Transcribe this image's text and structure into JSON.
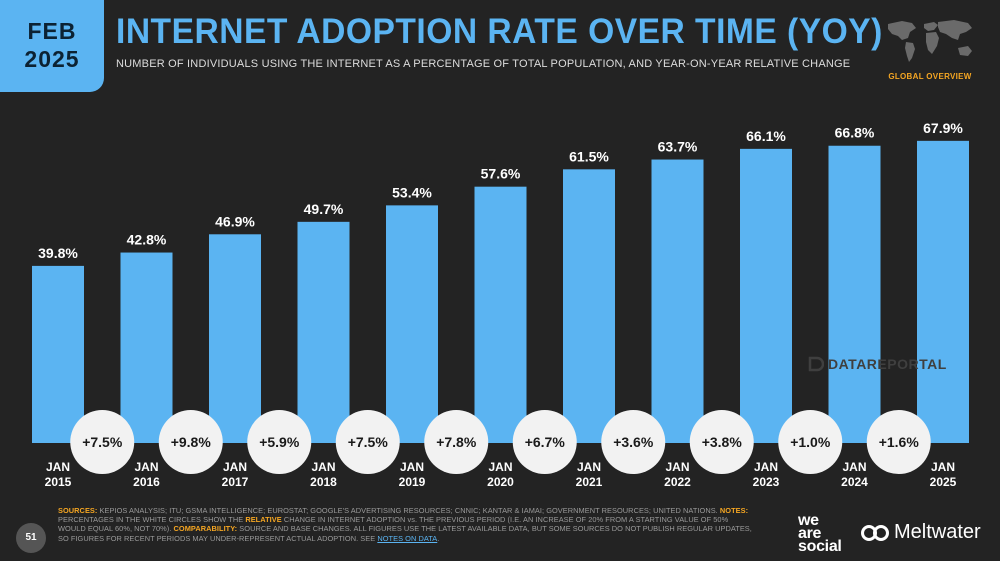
{
  "badge": {
    "month": "FEB",
    "year": "2025"
  },
  "title": "INTERNET ADOPTION RATE OVER TIME (YOY)",
  "subtitle": "NUMBER OF INDIVIDUALS USING THE INTERNET AS A PERCENTAGE OF TOTAL POPULATION, AND YEAR-ON-YEAR RELATIVE CHANGE",
  "global_label": "GLOBAL OVERVIEW",
  "watermark": "DATAREPORTAL",
  "page_number": "51",
  "colors": {
    "accent": "#5BB4F2",
    "background": "#232323",
    "highlight": "#F5A623",
    "circle": "#F2F2F2"
  },
  "chart_data": {
    "type": "bar",
    "categories": [
      "JAN 2015",
      "JAN 2016",
      "JAN 2017",
      "JAN 2018",
      "JAN 2019",
      "JAN 2020",
      "JAN 2021",
      "JAN 2022",
      "JAN 2023",
      "JAN 2024",
      "JAN 2025"
    ],
    "category_lines": [
      [
        "JAN",
        "2015"
      ],
      [
        "JAN",
        "2016"
      ],
      [
        "JAN",
        "2017"
      ],
      [
        "JAN",
        "2018"
      ],
      [
        "JAN",
        "2019"
      ],
      [
        "JAN",
        "2020"
      ],
      [
        "JAN",
        "2021"
      ],
      [
        "JAN",
        "2022"
      ],
      [
        "JAN",
        "2023"
      ],
      [
        "JAN",
        "2024"
      ],
      [
        "JAN",
        "2025"
      ]
    ],
    "values": [
      39.8,
      42.8,
      46.9,
      49.7,
      53.4,
      57.6,
      61.5,
      63.7,
      66.1,
      66.8,
      67.9
    ],
    "value_labels": [
      "39.8%",
      "42.8%",
      "46.9%",
      "49.7%",
      "53.4%",
      "57.6%",
      "61.5%",
      "63.7%",
      "66.1%",
      "66.8%",
      "67.9%"
    ],
    "changes": [
      7.5,
      9.8,
      5.9,
      7.5,
      7.8,
      6.7,
      3.6,
      3.8,
      1.0,
      1.6
    ],
    "change_labels": [
      "+7.5%",
      "+9.8%",
      "+5.9%",
      "+7.5%",
      "+7.8%",
      "+6.7%",
      "+3.6%",
      "+3.8%",
      "+1.0%",
      "+1.6%"
    ],
    "title": "INTERNET ADOPTION RATE OVER TIME (YOY)",
    "xlabel": "",
    "ylabel": "",
    "ylim": [
      0,
      100
    ],
    "grid": false,
    "legend": "none"
  },
  "footer": {
    "sources_label": "SOURCES:",
    "sources_text": " KEPIOS ANALYSIS; ITU; GSMA INTELLIGENCE; EUROSTAT; GOOGLE'S ADVERTISING RESOURCES; CNNIC; KANTAR & IAMAI; GOVERNMENT RESOURCES; UNITED NATIONS. ",
    "notes_label": "NOTES:",
    "notes_text_1": " PERCENTAGES IN THE WHITE CIRCLES SHOW THE ",
    "notes_relative": "RELATIVE",
    "notes_text_2": " CHANGE IN INTERNET ADOPTION vs. THE PREVIOUS PERIOD (I.E. AN INCREASE OF 20% FROM A STARTING VALUE OF 50% WOULD EQUAL 60%, NOT 70%).",
    "comparability_label": "COMPARABILITY:",
    "comparability_text": " SOURCE AND BASE CHANGES. ALL FIGURES USE THE LATEST AVAILABLE DATA, BUT SOME SOURCES DO NOT PUBLISH REGULAR UPDATES, SO FIGURES FOR RECENT PERIODS MAY UNDER-REPRESENT ACTUAL ADOPTION. SEE ",
    "notes_link": "NOTES ON DATA",
    "end": "."
  },
  "logos": {
    "was_line1": "we",
    "was_line2": "are",
    "was_line3": "social",
    "meltwater": "Meltwater"
  }
}
